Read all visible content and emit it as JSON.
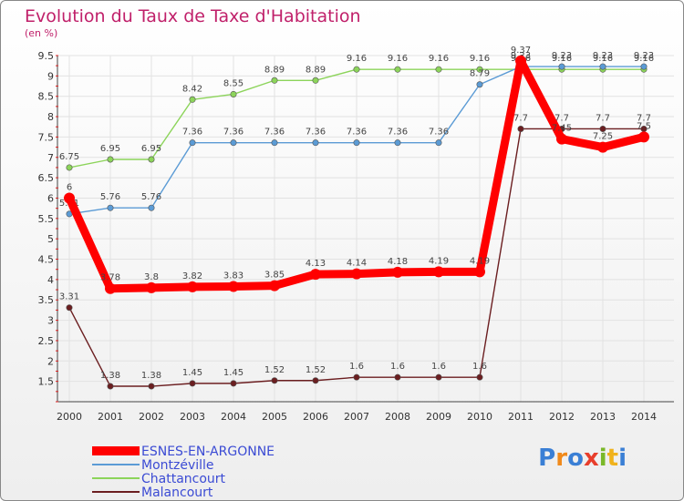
{
  "title": "Evolution du Taux de Taxe d'Habitation",
  "subtitle": "(en %)",
  "logo": [
    "P",
    "r",
    "o",
    "x",
    "i",
    "t",
    "i"
  ],
  "logo_colors": [
    "#3a7fd5",
    "#f08a1c",
    "#3a7fd5",
    "#e83e2b",
    "#7ab829",
    "#f0b21c",
    "#3a7fd5"
  ],
  "chart_data": {
    "type": "line",
    "title": "Evolution du Taux de Taxe d'Habitation",
    "ylabel": "(en %)",
    "ylim": [
      1,
      9.5
    ],
    "yticks": [
      "1.5",
      "2",
      "2.5",
      "3",
      "3.5",
      "4",
      "4.5",
      "5",
      "5.5",
      "6",
      "6.5",
      "7",
      "7.5",
      "8",
      "8.5",
      "9",
      "9.5"
    ],
    "x": [
      "2000",
      "2001",
      "2002",
      "2003",
      "2004",
      "2005",
      "2006",
      "2007",
      "2008",
      "2009",
      "2010",
      "2011",
      "2012",
      "2013",
      "2014"
    ],
    "series": [
      {
        "name": "Malancourt",
        "color": "#6b1e20",
        "values": [
          3.31,
          1.38,
          1.38,
          1.45,
          1.45,
          1.52,
          1.52,
          1.6,
          1.6,
          1.6,
          1.6,
          7.7,
          7.7,
          7.7,
          7.7
        ],
        "labels": [
          "3.31",
          "1.38",
          "1.38",
          "1.45",
          "1.45",
          "1.52",
          "1.52",
          "1.6",
          "1.6",
          "1.6",
          "1.6",
          "7.7",
          "7.7",
          "7.7",
          "7.7"
        ]
      },
      {
        "name": "Chattancourt",
        "color": "#8cd45a",
        "values": [
          6.75,
          6.95,
          6.95,
          8.42,
          8.55,
          8.89,
          8.89,
          9.16,
          9.16,
          9.16,
          9.16,
          9.16,
          9.16,
          9.16,
          9.16
        ],
        "labels": [
          "6.75",
          "6.95",
          "6.95",
          "8.42",
          "8.55",
          "8.89",
          "8.89",
          "9.16",
          "9.16",
          "9.16",
          "9.16",
          "9.16",
          "9.16",
          "9.16",
          "9.16"
        ]
      },
      {
        "name": "Montzéville",
        "color": "#5b9bd5",
        "values": [
          5.61,
          5.76,
          5.76,
          7.36,
          7.36,
          7.36,
          7.36,
          7.36,
          7.36,
          7.36,
          8.79,
          9.23,
          9.23,
          9.23,
          9.23
        ],
        "labels": [
          "5.61",
          "5.76",
          "5.76",
          "7.36",
          "7.36",
          "7.36",
          "7.36",
          "7.36",
          "7.36",
          "7.36",
          "8.79",
          "9.23",
          "9.23",
          "9.23",
          "9.23"
        ]
      },
      {
        "name": "ESNES-EN-ARGONNE",
        "color": "#ff0000",
        "values": [
          6,
          3.78,
          3.8,
          3.82,
          3.83,
          3.85,
          4.13,
          4.14,
          4.18,
          4.19,
          4.19,
          9.37,
          7.45,
          7.25,
          7.5
        ],
        "labels": [
          "6",
          "3.78",
          "3.8",
          "3.82",
          "3.83",
          "3.85",
          "4.13",
          "4.14",
          "4.18",
          "4.19",
          "4.19",
          "9.37",
          "7.45",
          "7.25",
          "7.5"
        ]
      }
    ],
    "legend": [
      "ESNES-EN-ARGONNE",
      "Montzéville",
      "Chattancourt",
      "Malancourt"
    ],
    "legend_position": "bottom-left"
  }
}
